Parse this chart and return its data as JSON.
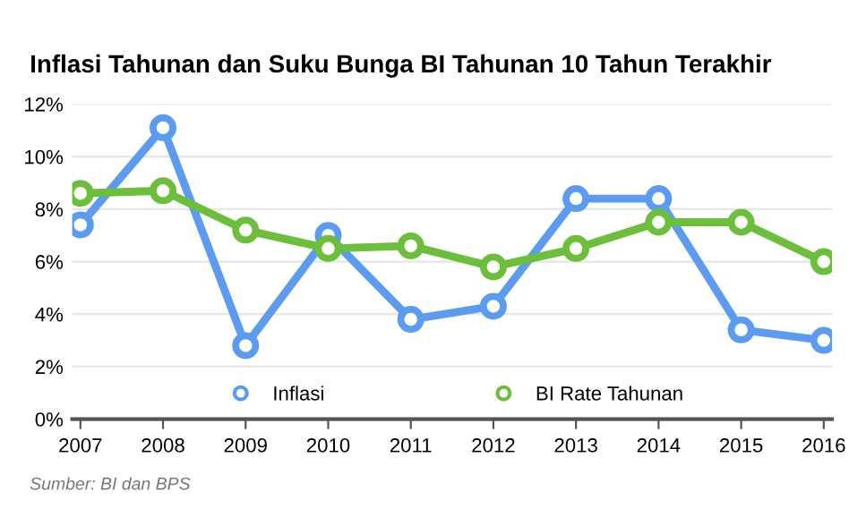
{
  "chart_data": {
    "type": "line",
    "title": "Inflasi Tahunan dan Suku Bunga BI Tahunan 10 Tahun Terakhir",
    "categories": [
      "2007",
      "2008",
      "2009",
      "2010",
      "2011",
      "2012",
      "2013",
      "2014",
      "2015",
      "2016"
    ],
    "series": [
      {
        "name": "Inflasi",
        "color": "#5b9cf0",
        "values": [
          7.4,
          11.1,
          2.8,
          7.0,
          3.8,
          4.3,
          8.4,
          8.4,
          3.4,
          3.0
        ]
      },
      {
        "name": "BI Rate Tahunan",
        "color": "#6cbf3a",
        "values": [
          8.6,
          8.7,
          7.2,
          6.5,
          6.6,
          5.8,
          6.5,
          7.5,
          7.5,
          6.0
        ]
      }
    ],
    "ylim": [
      0,
      12
    ],
    "yticks": [
      {
        "value": 0,
        "label": "0%"
      },
      {
        "value": 2,
        "label": "2%"
      },
      {
        "value": 4,
        "label": "4%"
      },
      {
        "value": 6,
        "label": "6%"
      },
      {
        "value": 8,
        "label": "8%"
      },
      {
        "value": 10,
        "label": "10%"
      },
      {
        "value": 12,
        "label": "12%"
      }
    ],
    "grid": "y",
    "legend": "bottom",
    "marker": "circle",
    "line_style": "solid",
    "annotations": [
      "Sumber: BI dan BPS"
    ]
  }
}
